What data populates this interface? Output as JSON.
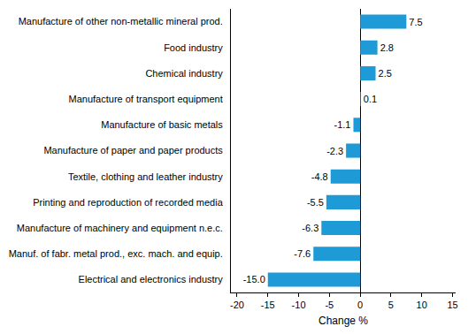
{
  "chart_data": {
    "type": "bar",
    "orientation": "horizontal",
    "x_label": "Change %",
    "categories": [
      "Manufacture of other non-metallic mineral prod.",
      "Food industry",
      "Chemical industry",
      "Manufacture of transport equipment",
      "Manufacture of basic metals",
      "Manufacture of paper and paper products",
      "Textile, clothing and leather industry",
      "Printing and reproduction of recorded media",
      "Manufacture of machinery and equipment n.e.c.",
      "Manuf. of fabr. metal prod., exc. mach. and equip.",
      "Electrical and electronics industry"
    ],
    "values": [
      7.5,
      2.8,
      2.5,
      0.1,
      -1.1,
      -2.3,
      -4.8,
      -5.5,
      -6.3,
      -7.6,
      -15.0
    ],
    "value_labels": [
      "7.5",
      "2.8",
      "2.5",
      "0.1",
      "-1.1",
      "-2.3",
      "-4.8",
      "-5.5",
      "-6.3",
      "-7.6",
      "-15.0"
    ],
    "color": "#1e9ad6",
    "xlim": [
      -21,
      15.5
    ],
    "xticks": [
      -20,
      -15,
      -10,
      -5,
      0,
      5,
      10,
      15
    ],
    "grid": false,
    "data_labels": true
  }
}
